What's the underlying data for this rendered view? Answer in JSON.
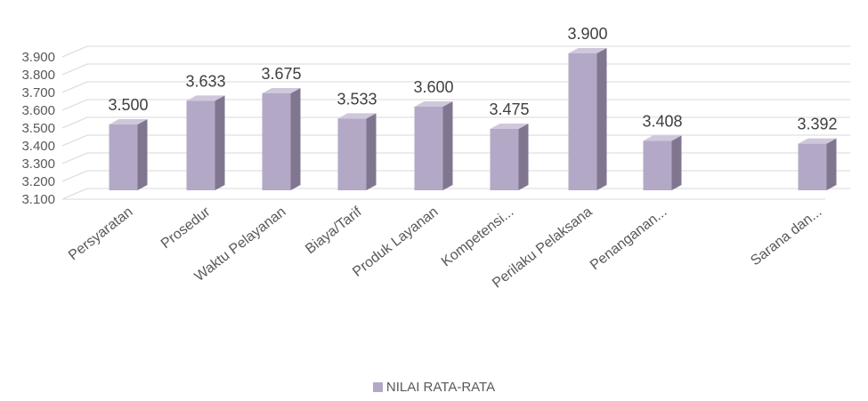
{
  "chart_data": {
    "type": "bar",
    "style": "3d-column",
    "title": "",
    "xlabel": "",
    "ylabel": "",
    "categories": [
      "Persyaratan",
      "Prosedur",
      "Waktu Pelayanan",
      "Biaya/Tarif",
      "Produk Layanan",
      "Kompetensi...",
      "Perilaku Pelaksana",
      "Penanganan...",
      "Sarana dan..."
    ],
    "series": [
      {
        "name": "NILAI RATA-RATA",
        "values": [
          3.5,
          3.633,
          3.675,
          3.533,
          3.6,
          3.475,
          3.9,
          3.408,
          3.392
        ],
        "value_labels": [
          "3.500",
          "3.633",
          "3.675",
          "3.533",
          "3.600",
          "3.475",
          "3.900",
          "3.408",
          "3.392"
        ],
        "color": "#B3A9C6"
      }
    ],
    "ylim": [
      3.1,
      3.9
    ],
    "yticks": [
      "3.100",
      "3.200",
      "3.300",
      "3.400",
      "3.500",
      "3.600",
      "3.700",
      "3.800",
      "3.900"
    ],
    "grid": true,
    "legend_position": "bottom",
    "colors": {
      "bar_front": "#B3A9C6",
      "bar_side": "#80768F",
      "bar_top": "#CFC7DC",
      "grid": "#D9D9D9",
      "legend_swatch": "#B3A9C6"
    }
  }
}
